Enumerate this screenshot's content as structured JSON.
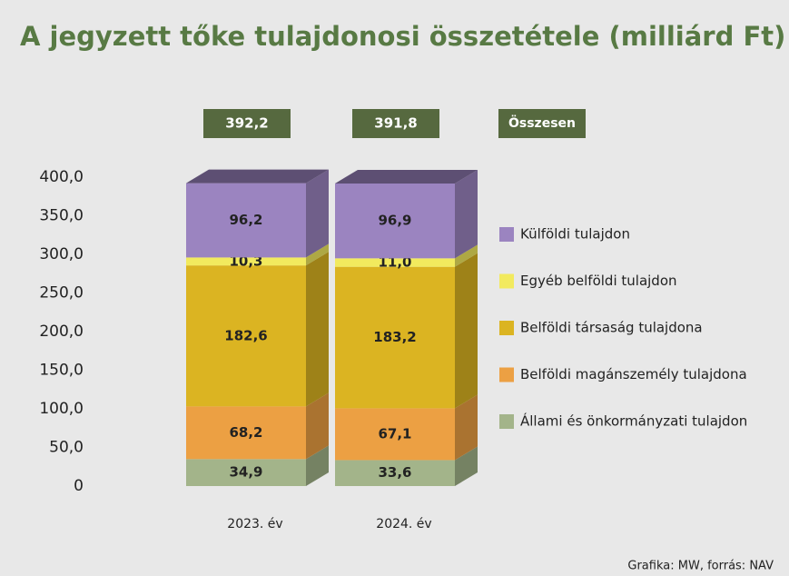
{
  "chart_data": {
    "type": "bar",
    "stacked": true,
    "three_d": true,
    "title": "A jegyzett tőke tulajdonosi összetétele (milliárd Ft)",
    "categories": [
      "2023. év",
      "2024. év"
    ],
    "series": [
      {
        "name": "Külföldi tulajdon",
        "color": "#9b84c0",
        "values": [
          96.2,
          96.9
        ],
        "value_labels": [
          "96,2",
          "96,9"
        ]
      },
      {
        "name": "Egyéb belföldi tulajdon",
        "color": "#f2ea5e",
        "values": [
          10.3,
          11.0
        ],
        "value_labels": [
          "10,3",
          "11,0"
        ]
      },
      {
        "name": "Belföldi társaság tulajdona",
        "color": "#dbb422",
        "values": [
          182.6,
          183.2
        ],
        "value_labels": [
          "182,6",
          "183,2"
        ]
      },
      {
        "name": "Belföldi magánszemély tulajdona",
        "color": "#eca043",
        "values": [
          68.2,
          67.1
        ],
        "value_labels": [
          "68,2",
          "67,1"
        ]
      },
      {
        "name": "Állami és önkormányzati tulajdon",
        "color": "#a3b48a",
        "values": [
          34.9,
          33.6
        ],
        "value_labels": [
          "34,9",
          "33,6"
        ]
      }
    ],
    "totals": {
      "label": "Összesen",
      "values": [
        392.2,
        391.8
      ],
      "value_labels": [
        "392,2",
        "391,8"
      ],
      "color": "#56693f"
    },
    "ylim": [
      0,
      400
    ],
    "yticks": [
      0,
      {
        "value": 50,
        "label": "50,0"
      },
      {
        "value": 100,
        "label": "100,0"
      },
      {
        "value": 150,
        "label": "150,0"
      },
      {
        "value": 200,
        "label": "200,0"
      },
      {
        "value": 250,
        "label": "250,0"
      },
      {
        "value": 300,
        "label": "300,0"
      },
      {
        "value": 350,
        "label": "350,0"
      },
      {
        "value": 400,
        "label": "400,0"
      }
    ],
    "grid": false,
    "legend": "right",
    "source": "Grafika: MW, forrás: NAV"
  }
}
